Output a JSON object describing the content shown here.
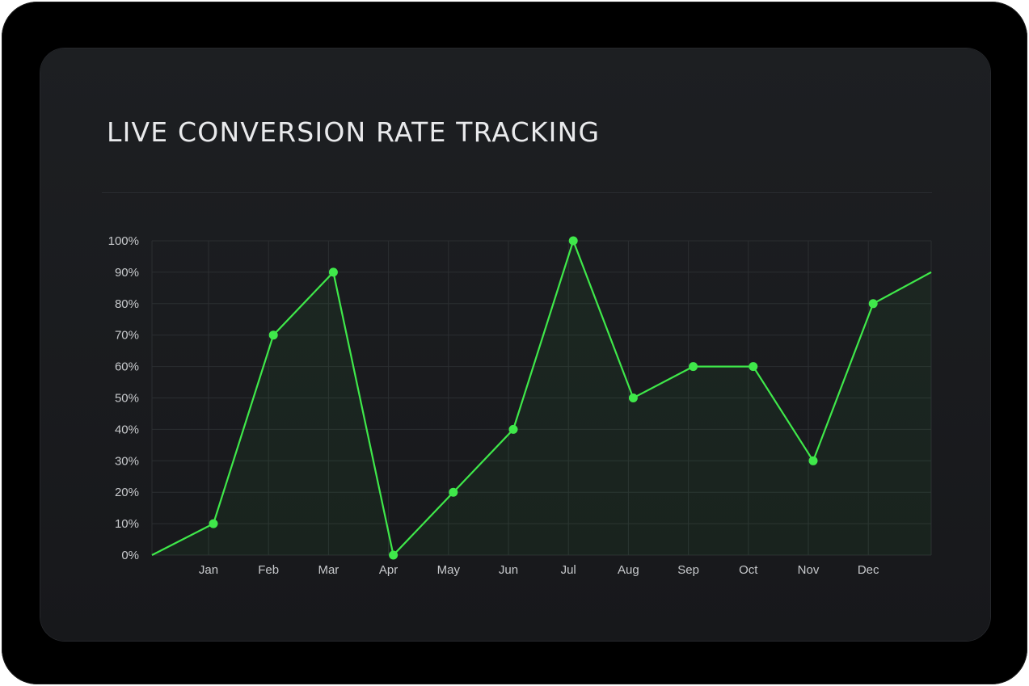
{
  "chart_data": {
    "type": "line",
    "title": "LIVE CONVERSION RATE TRACKING",
    "categories": [
      "Jan",
      "Feb",
      "Mar",
      "Apr",
      "May",
      "Jun",
      "Jul",
      "Aug",
      "Sep",
      "Oct",
      "Nov",
      "Dec"
    ],
    "series": [
      {
        "values": [
          10,
          70,
          90,
          0,
          20,
          40,
          100,
          50,
          60,
          60,
          30,
          80
        ]
      }
    ],
    "line_start_value": 0,
    "line_end_value": 90,
    "ylim": [
      0,
      100
    ],
    "yticks": [
      "0%",
      "10%",
      "20%",
      "30%",
      "40%",
      "50%",
      "60%",
      "70%",
      "80%",
      "90%",
      "100%"
    ],
    "grid": true,
    "line_color": "#3fe84a",
    "marker_color": "#3fe84a",
    "grid_color": "#2b2e31",
    "background": "#1a1b1e"
  }
}
